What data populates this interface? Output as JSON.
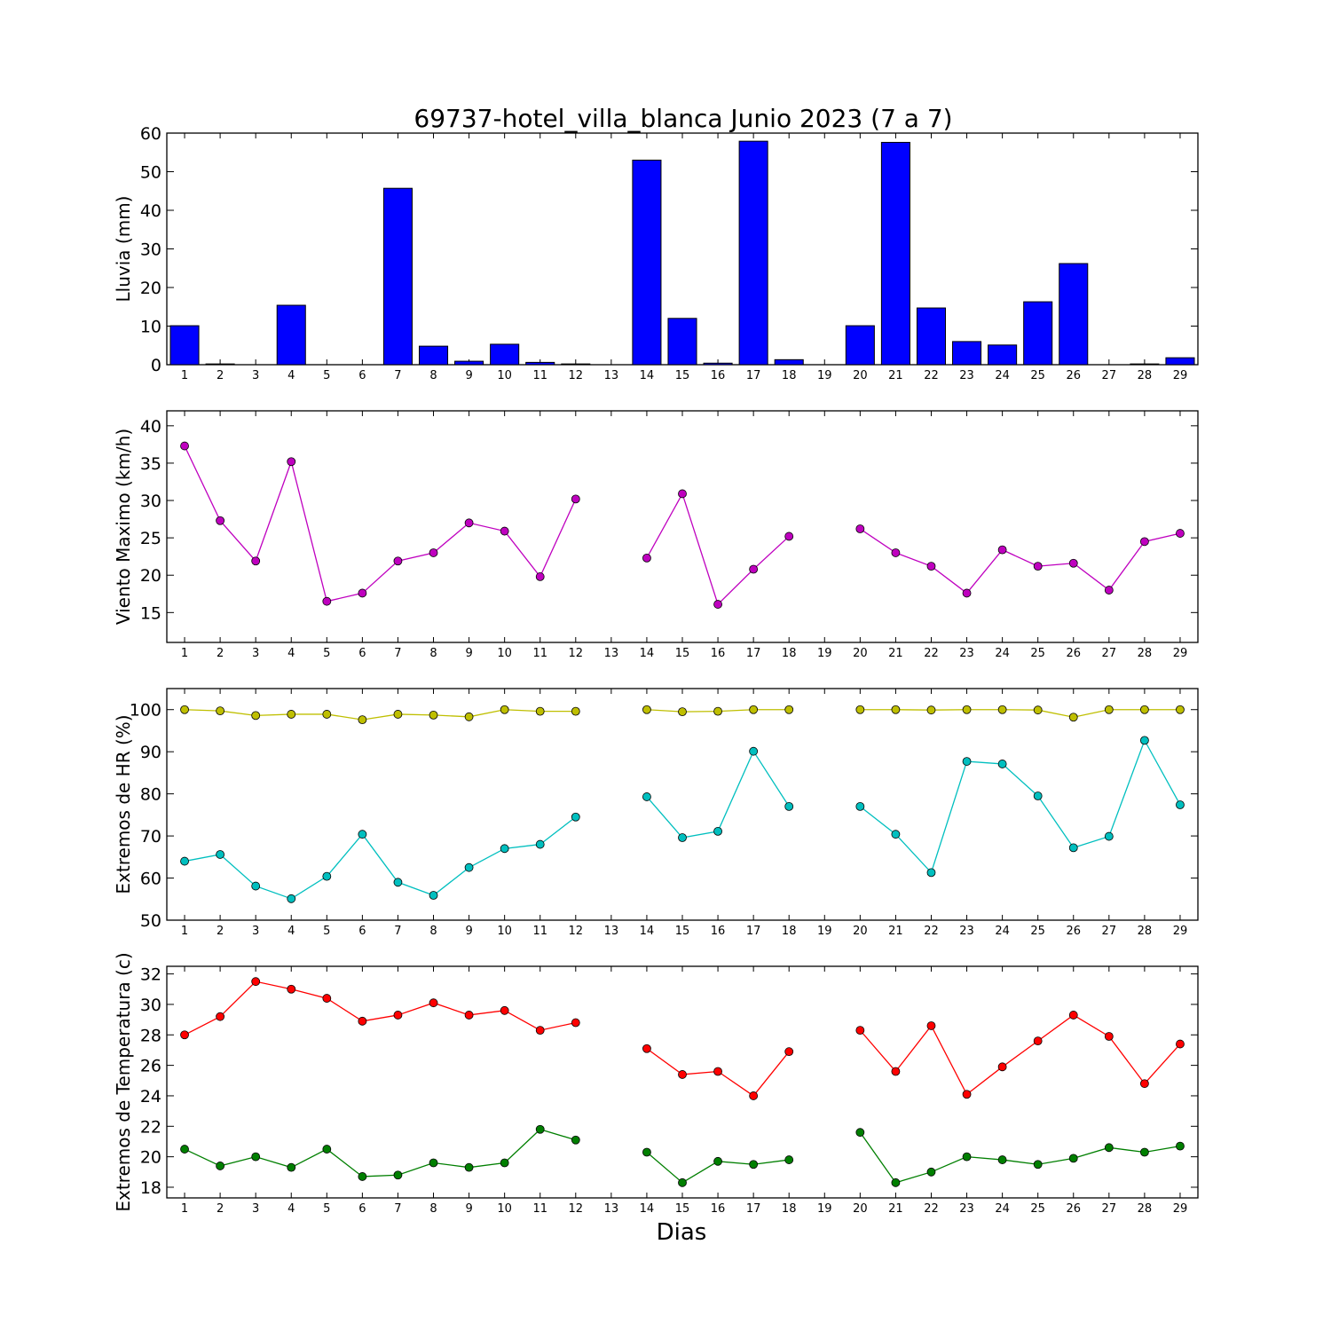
{
  "title": "69737-hotel_villa_blanca Junio 2023  (7 a 7)",
  "xlabel": "Dias",
  "days": [
    1,
    2,
    3,
    4,
    5,
    6,
    7,
    8,
    9,
    10,
    11,
    12,
    13,
    14,
    15,
    16,
    17,
    18,
    19,
    20,
    21,
    22,
    23,
    24,
    25,
    26,
    27,
    28,
    29
  ],
  "chart_data": [
    {
      "type": "bar",
      "ylabel": "Lluvia (mm)",
      "ylim": [
        0,
        60
      ],
      "yticks": [
        0,
        10,
        20,
        30,
        40,
        50,
        60
      ],
      "categories": [
        1,
        2,
        3,
        4,
        5,
        6,
        7,
        8,
        9,
        10,
        11,
        12,
        13,
        14,
        15,
        16,
        17,
        18,
        19,
        20,
        21,
        22,
        23,
        24,
        25,
        26,
        27,
        28,
        29
      ],
      "series": [
        {
          "color": "#0000ff",
          "values": [
            10.1,
            0.2,
            0,
            15.4,
            0,
            0,
            45.7,
            4.8,
            0.9,
            5.3,
            0.6,
            0.2,
            0,
            53.0,
            12.0,
            0.4,
            57.9,
            1.3,
            0,
            10.1,
            57.6,
            14.7,
            6.0,
            5.1,
            16.3,
            26.2,
            0,
            0.2,
            1.8
          ]
        }
      ]
    },
    {
      "type": "line",
      "ylabel": "Viento Maximo (km/h)",
      "ylim": [
        11,
        42
      ],
      "yticks": [
        15,
        20,
        25,
        30,
        35,
        40
      ],
      "x": [
        1,
        2,
        3,
        4,
        5,
        6,
        7,
        8,
        9,
        10,
        11,
        12,
        13,
        14,
        15,
        16,
        17,
        18,
        19,
        20,
        21,
        22,
        23,
        24,
        25,
        26,
        27,
        28,
        29
      ],
      "series": [
        {
          "color": "#bf00bf",
          "values": [
            37.3,
            27.3,
            21.9,
            35.2,
            16.5,
            17.6,
            21.9,
            23.0,
            27.0,
            25.9,
            19.8,
            30.2,
            null,
            22.3,
            30.9,
            16.1,
            20.8,
            25.2,
            null,
            26.2,
            23.0,
            21.2,
            17.6,
            23.4,
            21.2,
            21.6,
            18.0,
            24.5,
            25.6
          ]
        }
      ]
    },
    {
      "type": "line",
      "ylabel": "Extremos de HR (%)",
      "ylim": [
        50,
        105
      ],
      "yticks": [
        50,
        60,
        70,
        80,
        90,
        100
      ],
      "x": [
        1,
        2,
        3,
        4,
        5,
        6,
        7,
        8,
        9,
        10,
        11,
        12,
        13,
        14,
        15,
        16,
        17,
        18,
        19,
        20,
        21,
        22,
        23,
        24,
        25,
        26,
        27,
        28,
        29
      ],
      "series": [
        {
          "color": "#bfbf00",
          "values": [
            100,
            99.7,
            98.6,
            98.9,
            98.9,
            97.6,
            98.9,
            98.7,
            98.3,
            100,
            99.6,
            99.6,
            null,
            100,
            99.5,
            99.6,
            100,
            100,
            null,
            100,
            100,
            99.9,
            100,
            100,
            99.9,
            98.2,
            100,
            100,
            100
          ]
        },
        {
          "color": "#00bfbf",
          "values": [
            64.0,
            65.6,
            58.1,
            55.1,
            60.4,
            70.4,
            59.0,
            55.9,
            62.5,
            67.0,
            68.0,
            74.5,
            null,
            79.3,
            69.6,
            71.1,
            90.1,
            77.0,
            null,
            77.0,
            70.4,
            61.3,
            87.7,
            87.1,
            79.5,
            67.2,
            69.9,
            92.7,
            77.4
          ]
        }
      ]
    },
    {
      "type": "line",
      "ylabel": "Extremos de Temperatura (c)",
      "ylim": [
        17.3,
        32.5
      ],
      "yticks": [
        18,
        20,
        22,
        24,
        26,
        28,
        30,
        32
      ],
      "x": [
        1,
        2,
        3,
        4,
        5,
        6,
        7,
        8,
        9,
        10,
        11,
        12,
        13,
        14,
        15,
        16,
        17,
        18,
        19,
        20,
        21,
        22,
        23,
        24,
        25,
        26,
        27,
        28,
        29
      ],
      "series": [
        {
          "color": "#ff0000",
          "values": [
            28.0,
            29.2,
            31.5,
            31.0,
            30.4,
            28.9,
            29.3,
            30.1,
            29.3,
            29.6,
            28.3,
            28.8,
            null,
            27.1,
            25.4,
            25.6,
            24.0,
            26.9,
            null,
            28.3,
            25.6,
            28.6,
            24.1,
            25.9,
            27.6,
            29.3,
            27.9,
            24.8,
            27.4
          ]
        },
        {
          "color": "#007f00",
          "values": [
            20.5,
            19.4,
            20.0,
            19.3,
            20.5,
            18.7,
            18.8,
            19.6,
            19.3,
            19.6,
            21.8,
            21.1,
            null,
            20.3,
            18.3,
            19.7,
            19.5,
            19.8,
            null,
            21.6,
            18.3,
            19.0,
            20.0,
            19.8,
            19.5,
            19.9,
            20.6,
            20.3,
            20.7
          ]
        }
      ]
    }
  ]
}
